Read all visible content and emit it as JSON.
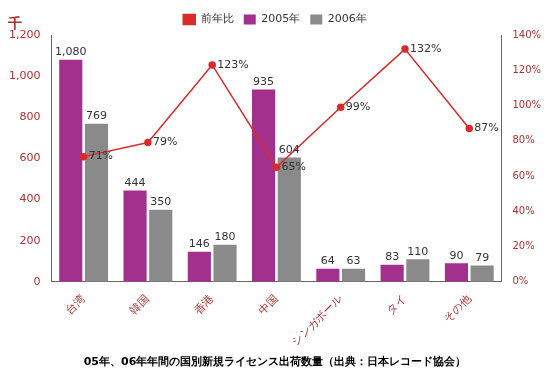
{
  "chart_data": {
    "type": "bar",
    "title": "05年、06年年間の国別新規ライセンス出荷数量（出典：日本レコード協会）",
    "y_label": "千",
    "categories": [
      "台湾",
      "韓国",
      "香港",
      "中国",
      "シンガポール",
      "タイ",
      "その他"
    ],
    "series": [
      {
        "name": "2005年",
        "type": "bar",
        "color": "#a2308c",
        "values": [
          1080,
          444,
          146,
          935,
          64,
          83,
          90
        ],
        "value_labels": [
          "1,080",
          "444",
          "146",
          "935",
          "64",
          "83",
          "90"
        ]
      },
      {
        "name": "2006年",
        "type": "bar",
        "color": "#8a8a8a",
        "values": [
          769,
          350,
          180,
          604,
          63,
          110,
          79
        ]
      },
      {
        "name": "前年比",
        "type": "line",
        "axis": "y2",
        "color": "#d92b2b",
        "marker": "circle",
        "values": [
          71,
          79,
          123,
          65,
          99,
          132,
          87
        ],
        "value_labels": [
          "71%",
          "79%",
          "123%",
          "65%",
          "99%",
          "132%",
          "87%"
        ]
      }
    ],
    "ylim": [
      0,
      1200
    ],
    "yticks": [
      0,
      200,
      400,
      600,
      800,
      {
        "value": 1000,
        "label": "1,000"
      },
      {
        "value": 1200,
        "label": "1,200"
      }
    ],
    "y2lim": [
      0,
      140
    ],
    "y2ticks": [
      {
        "value": 0,
        "label": "0%"
      },
      {
        "value": 20,
        "label": "20%"
      },
      {
        "value": 40,
        "label": "40%"
      },
      {
        "value": 60,
        "label": "60%"
      },
      {
        "value": 80,
        "label": "80%"
      },
      {
        "value": 100,
        "label": "100%"
      },
      {
        "value": 120,
        "label": "120%"
      },
      {
        "value": 140,
        "label": "140%"
      }
    ],
    "grid": false,
    "legend": "top",
    "data_labels": true
  }
}
